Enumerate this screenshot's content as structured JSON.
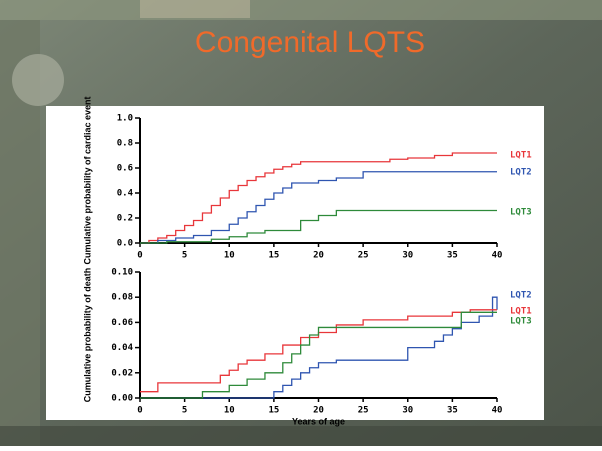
{
  "title": "Congenital LQTS",
  "chart_data": [
    {
      "type": "line",
      "step": true,
      "ylabel": "Cumulative probability of cardiac event",
      "xlim": [
        0,
        40
      ],
      "xticks": [
        0,
        5,
        10,
        15,
        20,
        25,
        30,
        35,
        40
      ],
      "ylim": [
        0,
        1.0
      ],
      "yticks": [
        {
          "value": 0,
          "label": "0.0"
        },
        {
          "value": 0.2,
          "label": "0.2"
        },
        {
          "value": 0.4,
          "label": "0.4"
        },
        {
          "value": 0.6,
          "label": "0.6"
        },
        {
          "value": 0.8,
          "label": "0.8"
        },
        {
          "value": 1.0,
          "label": "1.0"
        }
      ],
      "series": [
        {
          "name": "LQT1",
          "color": "#e8363a",
          "x": [
            0,
            1,
            2,
            3,
            4,
            5,
            6,
            7,
            8,
            9,
            10,
            11,
            12,
            13,
            14,
            15,
            16,
            17,
            18,
            22,
            25,
            28,
            30,
            33,
            35,
            40
          ],
          "values": [
            0,
            0.02,
            0.04,
            0.06,
            0.1,
            0.14,
            0.18,
            0.24,
            0.3,
            0.36,
            0.42,
            0.46,
            0.5,
            0.53,
            0.56,
            0.59,
            0.61,
            0.63,
            0.65,
            0.65,
            0.65,
            0.67,
            0.68,
            0.7,
            0.72,
            0.72
          ]
        },
        {
          "name": "LQT2",
          "color": "#2f55b0",
          "x": [
            0,
            2,
            4,
            6,
            8,
            10,
            11,
            12,
            13,
            14,
            15,
            16,
            17,
            20,
            22,
            25,
            30,
            40
          ],
          "values": [
            0,
            0.02,
            0.04,
            0.06,
            0.1,
            0.15,
            0.2,
            0.25,
            0.3,
            0.35,
            0.4,
            0.44,
            0.48,
            0.5,
            0.52,
            0.57,
            0.57,
            0.57
          ]
        },
        {
          "name": "LQT3",
          "color": "#2e8a3a",
          "x": [
            0,
            3,
            8,
            10,
            12,
            14,
            18,
            20,
            22,
            30,
            40
          ],
          "values": [
            0,
            0.01,
            0.03,
            0.05,
            0.08,
            0.1,
            0.18,
            0.22,
            0.26,
            0.26,
            0.26
          ]
        }
      ]
    },
    {
      "type": "line",
      "step": true,
      "ylabel": "Cumulative probability of death",
      "xlabel": "Years of age",
      "xlim": [
        0,
        40
      ],
      "xticks": [
        0,
        5,
        10,
        15,
        20,
        25,
        30,
        35,
        40
      ],
      "ylim": [
        0,
        0.1
      ],
      "yticks": [
        {
          "value": 0,
          "label": "0.00"
        },
        {
          "value": 0.02,
          "label": "0.02"
        },
        {
          "value": 0.04,
          "label": "0.04"
        },
        {
          "value": 0.06,
          "label": "0.06"
        },
        {
          "value": 0.08,
          "label": "0.08"
        },
        {
          "value": 0.1,
          "label": "0.10"
        }
      ],
      "series": [
        {
          "name": "LQT2",
          "color": "#2f55b0",
          "x": [
            0,
            15,
            16,
            17,
            18,
            19,
            20,
            22,
            23,
            30,
            33,
            34,
            35,
            36,
            38,
            39,
            39.5,
            40
          ],
          "values": [
            0,
            0.005,
            0.01,
            0.015,
            0.02,
            0.024,
            0.028,
            0.03,
            0.03,
            0.04,
            0.045,
            0.05,
            0.055,
            0.06,
            0.065,
            0.065,
            0.08,
            0.07
          ]
        },
        {
          "name": "LQT1",
          "color": "#e8363a",
          "x": [
            0,
            1,
            2,
            5,
            9,
            10,
            11,
            12,
            14,
            16,
            18,
            20,
            22,
            25,
            30,
            35,
            37,
            40
          ],
          "values": [
            0.005,
            0.005,
            0.012,
            0.012,
            0.018,
            0.022,
            0.027,
            0.03,
            0.035,
            0.042,
            0.048,
            0.052,
            0.058,
            0.062,
            0.065,
            0.068,
            0.07,
            0.07
          ]
        },
        {
          "name": "LQT3",
          "color": "#2e8a3a",
          "x": [
            0,
            7,
            10,
            12,
            14,
            16,
            17,
            18,
            19,
            20,
            35,
            36,
            40
          ],
          "values": [
            0,
            0.005,
            0.01,
            0.015,
            0.02,
            0.028,
            0.035,
            0.042,
            0.05,
            0.056,
            0.056,
            0.068,
            0.068
          ]
        }
      ]
    }
  ]
}
